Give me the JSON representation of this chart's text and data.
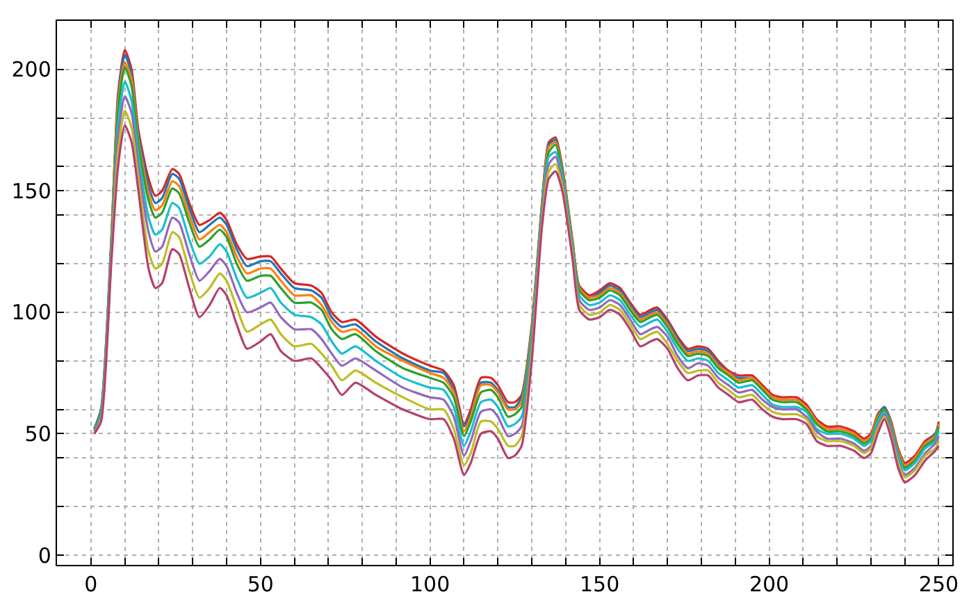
{
  "chart_data": {
    "type": "line",
    "x": [
      1,
      3,
      6,
      8,
      10,
      12,
      14,
      17,
      19,
      21,
      24,
      26,
      29,
      32,
      35,
      38,
      40,
      43,
      46,
      50,
      53,
      56,
      60,
      65,
      68,
      71,
      74,
      78,
      84,
      92,
      100,
      104,
      107,
      110,
      112,
      115,
      118,
      120,
      123,
      125,
      127,
      130,
      133,
      135,
      137,
      139,
      142,
      144,
      147,
      150,
      153,
      156,
      159,
      162,
      165,
      167,
      170,
      173,
      176,
      179,
      182,
      185,
      188,
      191,
      195,
      198,
      201,
      204,
      208,
      211,
      214,
      217,
      221,
      225,
      228,
      230,
      232,
      234,
      236,
      238,
      240,
      243,
      246,
      249,
      250
    ],
    "series": [
      {
        "color": "#d62728",
        "values": [
          52,
          60,
          130,
          190,
          208,
          200,
          175,
          155,
          148,
          150,
          159,
          157,
          145,
          136,
          138,
          141,
          138,
          128,
          122,
          123,
          123,
          118,
          112,
          111,
          108,
          100,
          96,
          97,
          90,
          83,
          78,
          76,
          70,
          54,
          60,
          73,
          73,
          70,
          63,
          63,
          66,
          95,
          145,
          170,
          172,
          160,
          130,
          111,
          107,
          109,
          112,
          110,
          104,
          99,
          101,
          102,
          97,
          90,
          85,
          86,
          85,
          80,
          76,
          74,
          74,
          70,
          66,
          65,
          65,
          62,
          56,
          53,
          53,
          51,
          48,
          50,
          58,
          61,
          55,
          44,
          38,
          41,
          47,
          50,
          55
        ]
      },
      {
        "color": "#1f77b4",
        "values": [
          52,
          60,
          129,
          188,
          206,
          198,
          173,
          152,
          145,
          147,
          157,
          155,
          143,
          133,
          136,
          139,
          136,
          126,
          119,
          121,
          121,
          116,
          110,
          109,
          106,
          98,
          94,
          95,
          88,
          81,
          76,
          75,
          68,
          53,
          58,
          71,
          71,
          68,
          61,
          61,
          65,
          94,
          144,
          169,
          171,
          159,
          129,
          110,
          106,
          108,
          111,
          109,
          103,
          98,
          100,
          101,
          96,
          89,
          84,
          85,
          84,
          79,
          75,
          73,
          73,
          69,
          65,
          64,
          64,
          61,
          55,
          52,
          52,
          50,
          47,
          49,
          57,
          61,
          54,
          43,
          37,
          40,
          46,
          50,
          54
        ]
      },
      {
        "color": "#ff7f0e",
        "values": [
          null,
          null,
          128,
          186,
          203,
          196,
          171,
          149,
          142,
          144,
          154,
          152,
          140,
          130,
          133,
          136,
          133,
          123,
          116,
          118,
          118,
          113,
          107,
          107,
          103,
          96,
          92,
          93,
          86,
          80,
          75,
          73,
          67,
          51,
          57,
          70,
          70,
          67,
          60,
          60,
          63,
          93,
          144,
          168,
          170,
          159,
          129,
          110,
          106,
          107,
          110,
          108,
          102,
          97,
          99,
          100,
          95,
          88,
          83,
          84,
          83,
          78,
          75,
          72,
          73,
          69,
          65,
          64,
          64,
          61,
          55,
          52,
          52,
          50,
          47,
          49,
          57,
          60,
          54,
          43,
          37,
          40,
          46,
          49,
          54
        ]
      },
      {
        "color": "#2ca02c",
        "values": [
          52,
          59,
          128,
          183,
          201,
          193,
          169,
          146,
          139,
          141,
          151,
          149,
          137,
          127,
          130,
          134,
          131,
          120,
          113,
          115,
          115,
          110,
          104,
          104,
          101,
          93,
          89,
          91,
          84,
          77,
          73,
          71,
          65,
          49,
          55,
          67,
          68,
          65,
          57,
          58,
          61,
          91,
          143,
          166,
          169,
          158,
          128,
          109,
          105,
          106,
          109,
          107,
          101,
          96,
          98,
          99,
          94,
          87,
          82,
          83,
          82,
          77,
          74,
          71,
          72,
          68,
          64,
          63,
          63,
          60,
          54,
          51,
          51,
          49,
          46,
          48,
          56,
          60,
          53,
          42,
          36,
          39,
          45,
          48,
          53
        ]
      },
      {
        "color": "#17becf",
        "values": [
          51,
          58,
          126,
          177,
          195,
          187,
          165,
          139,
          132,
          134,
          145,
          143,
          130,
          120,
          123,
          128,
          125,
          114,
          106,
          108,
          110,
          104,
          99,
          98,
          95,
          88,
          83,
          86,
          80,
          73,
          69,
          68,
          61,
          45,
          51,
          63,
          64,
          61,
          53,
          54,
          57,
          89,
          141,
          164,
          166,
          156,
          127,
          107,
          103,
          104,
          107,
          105,
          99,
          94,
          96,
          97,
          92,
          85,
          80,
          81,
          80,
          75,
          72,
          69,
          70,
          66,
          62,
          61,
          61,
          59,
          52,
          50,
          50,
          48,
          45,
          47,
          55,
          59,
          52,
          41,
          35,
          38,
          44,
          47,
          51
        ]
      },
      {
        "color": "#9467bd",
        "values": [
          51,
          57,
          124,
          172,
          189,
          182,
          160,
          133,
          125,
          127,
          139,
          137,
          124,
          113,
          117,
          122,
          119,
          108,
          100,
          102,
          104,
          98,
          93,
          93,
          89,
          83,
          78,
          81,
          76,
          69,
          65,
          64,
          57,
          41,
          47,
          59,
          60,
          57,
          49,
          50,
          53,
          86,
          139,
          161,
          164,
          154,
          125,
          105,
          101,
          102,
          105,
          103,
          97,
          91,
          93,
          94,
          90,
          82,
          77,
          79,
          78,
          73,
          70,
          67,
          68,
          64,
          61,
          60,
          60,
          57,
          51,
          48,
          48,
          46,
          43,
          45,
          53,
          58,
          51,
          39,
          33,
          36,
          42,
          46,
          49
        ]
      },
      {
        "color": "#bcbd22",
        "values": [
          50,
          56,
          122,
          166,
          183,
          176,
          155,
          125,
          118,
          120,
          133,
          131,
          117,
          106,
          110,
          116,
          113,
          102,
          92,
          95,
          97,
          91,
          86,
          87,
          83,
          78,
          72,
          76,
          71,
          65,
          60,
          60,
          52,
          37,
          42,
          55,
          55,
          52,
          45,
          45,
          49,
          83,
          137,
          158,
          161,
          152,
          124,
          103,
          99,
          100,
          103,
          101,
          95,
          89,
          91,
          92,
          87,
          80,
          75,
          76,
          76,
          71,
          68,
          65,
          66,
          62,
          59,
          58,
          58,
          56,
          49,
          47,
          47,
          45,
          42,
          44,
          52,
          57,
          49,
          38,
          32,
          35,
          41,
          44,
          47
        ]
      },
      {
        "color": "#b5406e",
        "values": [
          50,
          55,
          120,
          160,
          177,
          170,
          150,
          118,
          110,
          112,
          126,
          124,
          110,
          98,
          103,
          110,
          107,
          95,
          85,
          88,
          91,
          84,
          80,
          81,
          77,
          72,
          66,
          71,
          66,
          60,
          56,
          56,
          48,
          33,
          38,
          50,
          51,
          48,
          40,
          41,
          45,
          80,
          135,
          155,
          158,
          150,
          122,
          101,
          97,
          98,
          101,
          99,
          93,
          86,
          88,
          89,
          85,
          77,
          72,
          74,
          74,
          69,
          66,
          63,
          64,
          60,
          57,
          56,
          56,
          54,
          47,
          45,
          45,
          43,
          40,
          42,
          50,
          56,
          48,
          36,
          30,
          33,
          39,
          43,
          45
        ]
      }
    ],
    "xlim": [
      -10,
      254
    ],
    "ylim": [
      -4,
      220
    ],
    "xticks": [
      {
        "value": -10,
        "label": null
      },
      0,
      {
        "value": 10,
        "label": null
      },
      {
        "value": 20,
        "label": null
      },
      {
        "value": 30,
        "label": null
      },
      {
        "value": 40,
        "label": null
      },
      50,
      {
        "value": 60,
        "label": null
      },
      {
        "value": 70,
        "label": null
      },
      {
        "value": 80,
        "label": null
      },
      {
        "value": 90,
        "label": null
      },
      100,
      {
        "value": 110,
        "label": null
      },
      {
        "value": 120,
        "label": null
      },
      {
        "value": 130,
        "label": null
      },
      {
        "value": 140,
        "label": null
      },
      150,
      {
        "value": 160,
        "label": null
      },
      {
        "value": 170,
        "label": null
      },
      {
        "value": 180,
        "label": null
      },
      {
        "value": 190,
        "label": null
      },
      200,
      {
        "value": 210,
        "label": null
      },
      {
        "value": 220,
        "label": null
      },
      {
        "value": 230,
        "label": null
      },
      {
        "value": 240,
        "label": null
      },
      250
    ],
    "yticks": [
      0,
      {
        "value": 20,
        "label": null
      },
      {
        "value": 40,
        "label": null
      },
      50,
      {
        "value": 60,
        "label": null
      },
      {
        "value": 80,
        "label": null
      },
      100,
      {
        "value": 120,
        "label": null
      },
      {
        "value": 140,
        "label": null
      },
      150,
      {
        "value": 160,
        "label": null
      },
      {
        "value": 180,
        "label": null
      },
      200,
      {
        "value": 220,
        "label": null
      }
    ],
    "grid": true,
    "marker": "none",
    "line_style": "solid"
  }
}
